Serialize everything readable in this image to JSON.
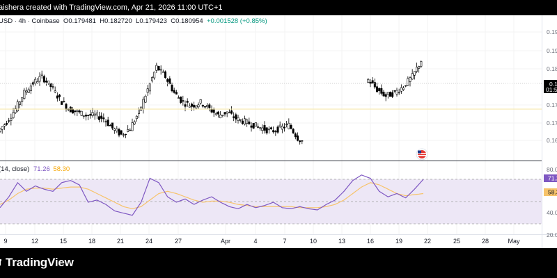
{
  "header": {
    "attribution": "aishera created with TradingView.com, Apr 21, 2026 11:00 UTC+1"
  },
  "symbol": {
    "name": "USD · 4h · Coinbase",
    "open_label": "O",
    "open": "0.179481",
    "high_label": "H",
    "high": "0.182720",
    "low_label": "L",
    "low": "0.179423",
    "close_label": "C",
    "close": "0.180954",
    "change": "+0.001528 (+0.85%)"
  },
  "price_badge": {
    "price": "0.18",
    "countdown": "01:5"
  },
  "rsi": {
    "label": "(14, close)",
    "value": "71.26",
    "ma": "58.30",
    "badge_rsi": "71.2",
    "badge_ma": "58.3"
  },
  "price_axis": [
    "0.19",
    "0.19",
    "0.18",
    "0.17",
    "0.17",
    "0.16"
  ],
  "rsi_axis": [
    "80.0",
    "40.0",
    "20.0"
  ],
  "x_axis": [
    "9",
    "12",
    "15",
    "18",
    "21",
    "24",
    "27",
    "Apr",
    "4",
    "7",
    "10",
    "13",
    "16",
    "19",
    "22",
    "25",
    "28",
    "May"
  ],
  "colors": {
    "up": "#089981",
    "down": "#f23645",
    "candle": "#000000",
    "rsi_line": "#7e57c2",
    "rsi_ma": "#f7c36a",
    "rsi_band": "#ede7f6"
  },
  "footer": {
    "brand": "TradingView"
  },
  "chart_data": {
    "type": "line",
    "title": "",
    "series": [
      {
        "name": "price",
        "values": [
          0.159,
          0.162,
          0.166,
          0.171,
          0.174,
          0.176,
          0.173,
          0.169,
          0.166,
          0.165,
          0.164,
          0.164,
          0.163,
          0.16,
          0.158,
          0.16,
          0.165,
          0.172,
          0.179,
          0.176,
          0.171,
          0.168,
          0.167,
          0.168,
          0.166,
          0.164,
          0.165,
          0.163,
          0.162,
          0.161,
          0.16,
          0.159,
          0.16,
          0.161,
          0.157,
          0.155,
          0.154,
          0.155,
          0.156,
          0.158,
          0.162,
          0.169,
          0.175,
          0.172,
          0.17,
          0.171,
          0.173,
          0.176,
          0.181
        ]
      },
      {
        "name": "RSI",
        "values": [
          45,
          55,
          68,
          60,
          65,
          62,
          60,
          68,
          70,
          66,
          50,
          52,
          48,
          42,
          40,
          38,
          50,
          72,
          68,
          55,
          50,
          53,
          48,
          52,
          55,
          50,
          46,
          44,
          48,
          45,
          47,
          50,
          45,
          44,
          46,
          44,
          43,
          48,
          52,
          60,
          70,
          75,
          72,
          60,
          55,
          58,
          54,
          62,
          71
        ]
      },
      {
        "name": "RSI MA",
        "values": [
          48,
          52,
          58,
          62,
          63,
          63,
          62,
          63,
          64,
          64,
          62,
          58,
          54,
          50,
          46,
          44,
          46,
          52,
          58,
          60,
          58,
          55,
          52,
          50,
          51,
          51,
          50,
          48,
          47,
          46,
          46,
          46,
          46,
          46,
          45,
          45,
          45,
          46,
          48,
          52,
          58,
          64,
          68,
          66,
          62,
          58,
          56,
          57,
          58
        ]
      }
    ],
    "ylim_price": [
      0.15,
      0.195
    ],
    "ylim_rsi": [
      20,
      80
    ],
    "rsi_levels": [
      70,
      30
    ]
  }
}
